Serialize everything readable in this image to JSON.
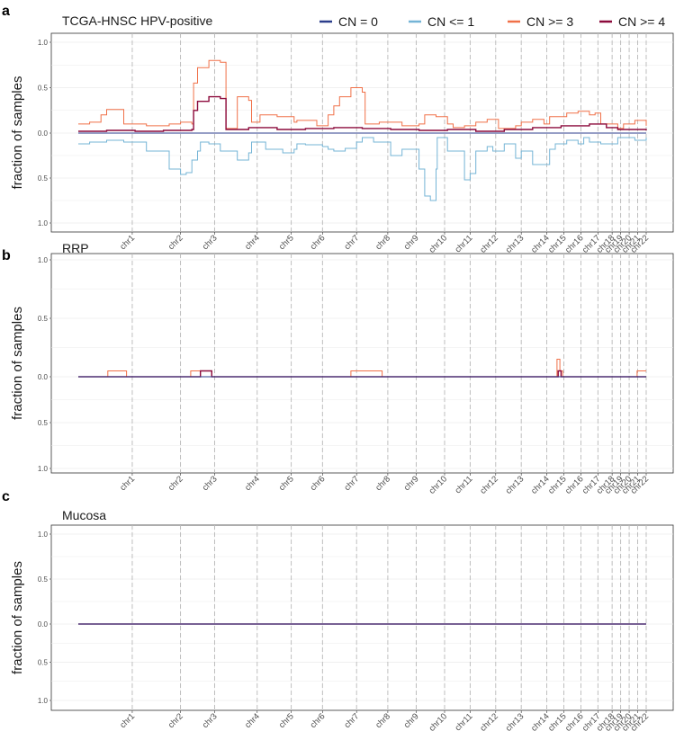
{
  "legend": {
    "entries": [
      {
        "label": "CN = 0",
        "color": "#2c3e8c"
      },
      {
        "label": "CN <= 1",
        "color": "#74b4d6"
      },
      {
        "label": "CN >= 3",
        "color": "#f07048"
      },
      {
        "label": "CN >= 4",
        "color": "#8c0a3c"
      }
    ]
  },
  "chart_data": [
    {
      "panel": "a",
      "type": "line",
      "title": "TCGA-HNSC HPV-positive",
      "ylabel": "fraction of samples",
      "ylim": [
        -1.0,
        1.0
      ],
      "yticks": [
        "1.0",
        "0.5",
        "0.0",
        "0.5",
        "1.0"
      ],
      "chromosomes": [
        "chr1",
        "chr2",
        "chr3",
        "chr4",
        "chr5",
        "chr6",
        "chr7",
        "chr8",
        "chr9",
        "chr10",
        "chr11",
        "chr12",
        "chr13",
        "chr14",
        "chr15",
        "chr16",
        "chr17",
        "chr18",
        "chr19",
        "chr20",
        "chr21",
        "chr22"
      ],
      "x_unit": "chromosome position (chr1 start = 0, chr22 end = 1)",
      "series": [
        {
          "name": "CN = 0",
          "x": [
            0,
            1
          ],
          "values": [
            0.0,
            0.0
          ]
        },
        {
          "name": "CN <= 1",
          "x": [
            0,
            0.02,
            0.05,
            0.08,
            0.12,
            0.16,
            0.18,
            0.19,
            0.2,
            0.21,
            0.215,
            0.23,
            0.25,
            0.28,
            0.3,
            0.305,
            0.33,
            0.36,
            0.38,
            0.385,
            0.4,
            0.43,
            0.44,
            0.45,
            0.47,
            0.49,
            0.5,
            0.52,
            0.55,
            0.57,
            0.6,
            0.61,
            0.62,
            0.63,
            0.632,
            0.65,
            0.68,
            0.69,
            0.7,
            0.72,
            0.73,
            0.75,
            0.77,
            0.78,
            0.8,
            0.83,
            0.84,
            0.86,
            0.88,
            0.89,
            0.9,
            0.92,
            0.95,
            0.96,
            0.98,
            1.0
          ],
          "values": [
            -0.12,
            -0.1,
            -0.08,
            -0.1,
            -0.2,
            -0.4,
            -0.46,
            -0.44,
            -0.3,
            -0.2,
            -0.1,
            -0.12,
            -0.2,
            -0.3,
            -0.22,
            -0.1,
            -0.18,
            -0.22,
            -0.18,
            -0.12,
            -0.13,
            -0.15,
            -0.18,
            -0.2,
            -0.17,
            -0.1,
            -0.05,
            -0.1,
            -0.25,
            -0.18,
            -0.4,
            -0.7,
            -0.75,
            -0.4,
            -0.05,
            -0.2,
            -0.52,
            -0.45,
            -0.2,
            -0.15,
            -0.2,
            -0.12,
            -0.28,
            -0.2,
            -0.35,
            -0.18,
            -0.12,
            -0.08,
            -0.12,
            -0.05,
            -0.1,
            -0.12,
            -0.05,
            -0.05,
            -0.08,
            -0.05
          ]
        },
        {
          "name": "CN >= 3",
          "x": [
            0,
            0.02,
            0.04,
            0.05,
            0.08,
            0.12,
            0.16,
            0.18,
            0.2,
            0.203,
            0.21,
            0.23,
            0.25,
            0.26,
            0.28,
            0.3,
            0.305,
            0.32,
            0.35,
            0.38,
            0.385,
            0.42,
            0.44,
            0.45,
            0.46,
            0.48,
            0.5,
            0.505,
            0.53,
            0.57,
            0.6,
            0.61,
            0.63,
            0.65,
            0.66,
            0.68,
            0.7,
            0.72,
            0.74,
            0.77,
            0.78,
            0.8,
            0.82,
            0.83,
            0.86,
            0.88,
            0.9,
            0.91,
            0.92,
            0.95,
            0.96,
            0.98,
            1.0
          ],
          "values": [
            0.1,
            0.12,
            0.2,
            0.26,
            0.1,
            0.08,
            0.1,
            0.12,
            0.1,
            0.55,
            0.72,
            0.8,
            0.78,
            0.05,
            0.4,
            0.36,
            0.12,
            0.2,
            0.18,
            0.12,
            0.14,
            0.08,
            0.2,
            0.3,
            0.4,
            0.5,
            0.45,
            0.1,
            0.12,
            0.08,
            0.1,
            0.2,
            0.18,
            0.1,
            0.06,
            0.08,
            0.12,
            0.15,
            0.05,
            0.08,
            0.12,
            0.15,
            0.1,
            0.18,
            0.22,
            0.24,
            0.2,
            0.22,
            0.1,
            0.05,
            0.1,
            0.14,
            0.08
          ]
        },
        {
          "name": "CN >= 4",
          "x": [
            0,
            0.05,
            0.1,
            0.15,
            0.2,
            0.203,
            0.21,
            0.23,
            0.25,
            0.26,
            0.3,
            0.35,
            0.4,
            0.45,
            0.5,
            0.55,
            0.6,
            0.65,
            0.7,
            0.75,
            0.8,
            0.85,
            0.9,
            0.93,
            0.95,
            1.0
          ],
          "values": [
            0.02,
            0.03,
            0.02,
            0.03,
            0.04,
            0.25,
            0.35,
            0.4,
            0.38,
            0.04,
            0.06,
            0.04,
            0.05,
            0.06,
            0.05,
            0.04,
            0.03,
            0.04,
            0.02,
            0.04,
            0.06,
            0.08,
            0.1,
            0.06,
            0.04,
            0.03
          ]
        }
      ]
    },
    {
      "panel": "b",
      "type": "line",
      "title": "RRP",
      "ylabel": "fraction of samples",
      "ylim": [
        -1.0,
        1.0
      ],
      "yticks": [
        "1.0",
        "0.5",
        "0.0",
        "0.5",
        "1.0"
      ],
      "chromosomes": [
        "chr1",
        "chr2",
        "chr3",
        "chr4",
        "chr5",
        "chr6",
        "chr7",
        "chr8",
        "chr9",
        "chr10",
        "chr11",
        "chr12",
        "chr13",
        "chr14",
        "chr15",
        "chr16",
        "chr17",
        "chr18",
        "chr19",
        "chr20",
        "chr21",
        "chr22"
      ],
      "x_unit": "chromosome position (chr1 start = 0, chr22 end = 1)",
      "series": [
        {
          "name": "CN = 0",
          "x": [
            0,
            1
          ],
          "values": [
            0.0,
            0.0
          ]
        },
        {
          "name": "CN <= 1",
          "x": [
            0,
            1
          ],
          "values": [
            0.0,
            0.0
          ]
        },
        {
          "name": "CN >= 3",
          "x": [
            0,
            0.052,
            0.052,
            0.085,
            0.085,
            0.198,
            0.198,
            0.235,
            0.235,
            0.48,
            0.48,
            0.535,
            0.535,
            0.843,
            0.843,
            0.848,
            0.848,
            0.853,
            0.853,
            0.984,
            0.984,
            1.0
          ],
          "values": [
            0,
            0,
            0.05,
            0.05,
            0,
            0,
            0.05,
            0.05,
            0,
            0,
            0.05,
            0.05,
            0,
            0,
            0.15,
            0.15,
            0.05,
            0.05,
            0,
            0,
            0.05,
            0.05
          ]
        },
        {
          "name": "CN >= 4",
          "x": [
            0,
            0.215,
            0.215,
            0.235,
            0.235,
            0.845,
            0.845,
            0.85,
            0.85,
            1.0
          ],
          "values": [
            0,
            0,
            0.05,
            0.05,
            0,
            0,
            0.05,
            0.05,
            0,
            0
          ]
        }
      ]
    },
    {
      "panel": "c",
      "type": "line",
      "title": "Mucosa",
      "ylabel": "fraction of samples",
      "ylim": [
        -1.0,
        1.0
      ],
      "yticks": [
        "1.0",
        "0.5",
        "0.0",
        "0.5",
        "1.0"
      ],
      "chromosomes": [
        "chr1",
        "chr2",
        "chr3",
        "chr4",
        "chr5",
        "chr6",
        "chr7",
        "chr8",
        "chr9",
        "chr10",
        "chr11",
        "chr12",
        "chr13",
        "chr14",
        "chr15",
        "chr16",
        "chr17",
        "chr18",
        "chr19",
        "chr20",
        "chr21",
        "chr22"
      ],
      "x_unit": "chromosome position (chr1 start = 0, chr22 end = 1)",
      "series": [
        {
          "name": "CN = 0",
          "x": [
            0,
            1
          ],
          "values": [
            0.0,
            0.0
          ]
        },
        {
          "name": "CN <= 1",
          "x": [
            0,
            1
          ],
          "values": [
            0.0,
            0.0
          ]
        },
        {
          "name": "CN >= 3",
          "x": [
            0,
            1
          ],
          "values": [
            0.0,
            0.0
          ]
        },
        {
          "name": "CN >= 4",
          "x": [
            0,
            1
          ],
          "values": [
            0.0,
            0.0
          ]
        }
      ]
    }
  ]
}
